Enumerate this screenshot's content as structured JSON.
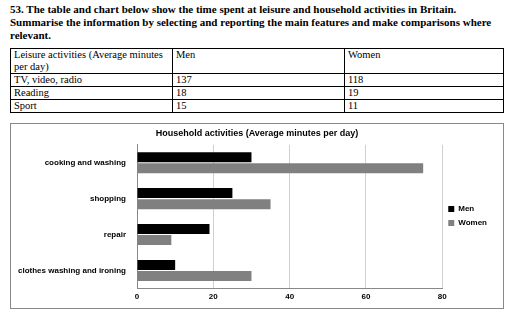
{
  "heading": "53. The table and chart below show the time spent at leisure and household activities in Britain. Summarise the information by selecting and reporting the main features and make comparisons where relevant.",
  "table": {
    "header": [
      "Leisure activities (Average minutes per day)",
      "Men",
      "Women"
    ],
    "rows": [
      [
        "TV, video, radio",
        137,
        118
      ],
      [
        "Reading",
        18,
        19
      ],
      [
        "Sport",
        15,
        11
      ]
    ]
  },
  "chart_data": {
    "type": "bar",
    "orientation": "horizontal",
    "title": "Household activities (Average minutes per day)",
    "categories": [
      "cooking and washing",
      "shopping",
      "repair",
      "clothes washing and ironing"
    ],
    "series": [
      {
        "name": "Men",
        "color": "#000000",
        "values": [
          30,
          25,
          19,
          10
        ]
      },
      {
        "name": "Women",
        "color": "#808080",
        "values": [
          75,
          35,
          9,
          30
        ]
      }
    ],
    "xlim": [
      0,
      80
    ],
    "xticks": [
      0,
      20,
      40,
      60,
      80
    ],
    "grid": true,
    "legend": "right"
  }
}
